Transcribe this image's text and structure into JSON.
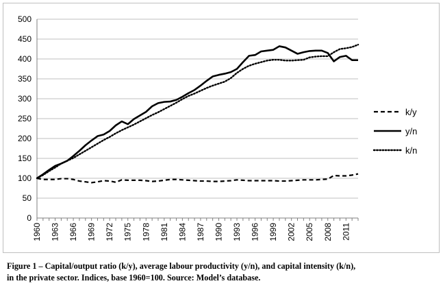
{
  "chart_data": {
    "type": "line",
    "x": [
      1960,
      1961,
      1962,
      1963,
      1964,
      1965,
      1966,
      1967,
      1968,
      1969,
      1970,
      1971,
      1972,
      1973,
      1974,
      1975,
      1976,
      1977,
      1978,
      1979,
      1980,
      1981,
      1982,
      1983,
      1984,
      1985,
      1986,
      1987,
      1988,
      1989,
      1990,
      1991,
      1992,
      1993,
      1994,
      1995,
      1996,
      1997,
      1998,
      1999,
      2000,
      2001,
      2002,
      2003,
      2004,
      2005,
      2006,
      2007,
      2008,
      2009,
      2010,
      2011,
      2012,
      2013
    ],
    "x_tick_labels": [
      "1960",
      "1963",
      "1966",
      "1969",
      "1972",
      "1975",
      "1978",
      "1981",
      "1984",
      "1987",
      "1990",
      "1993",
      "1996",
      "1999",
      "2002",
      "2005",
      "2008",
      "2011"
    ],
    "y_tick_labels": [
      "0",
      "50",
      "100",
      "150",
      "200",
      "250",
      "300",
      "350",
      "400",
      "450",
      "500"
    ],
    "ylim": [
      0,
      500
    ],
    "xlabel": "",
    "ylabel": "",
    "grid": "horizontal",
    "legend_position": "right",
    "series": [
      {
        "name": "k/y",
        "dash": "dashed",
        "values": [
          100,
          97,
          97,
          97,
          99,
          99,
          97,
          93,
          91,
          89,
          91,
          94,
          93,
          90,
          96,
          95,
          95,
          95,
          94,
          92,
          93,
          95,
          97,
          97,
          96,
          95,
          94,
          93,
          93,
          92,
          92,
          93,
          94,
          96,
          95,
          94,
          94,
          94,
          94,
          94,
          93,
          93,
          94,
          95,
          96,
          96,
          96,
          97,
          98,
          107,
          106,
          106,
          108,
          111
        ]
      },
      {
        "name": "y/n",
        "dash": "solid",
        "values": [
          100,
          110,
          121,
          131,
          137,
          144,
          156,
          169,
          183,
          195,
          206,
          210,
          219,
          233,
          243,
          236,
          249,
          258,
          267,
          281,
          289,
          292,
          293,
          297,
          305,
          314,
          322,
          333,
          345,
          356,
          360,
          363,
          367,
          375,
          392,
          408,
          410,
          419,
          421,
          423,
          432,
          429,
          421,
          413,
          417,
          420,
          421,
          421,
          415,
          394,
          405,
          408,
          397,
          397
        ]
      },
      {
        "name": "k/n",
        "dash": "dotted",
        "values": [
          100,
          108,
          118,
          127,
          137,
          144,
          151,
          160,
          169,
          178,
          187,
          196,
          204,
          213,
          221,
          228,
          235,
          243,
          251,
          259,
          266,
          274,
          282,
          290,
          299,
          307,
          313,
          320,
          327,
          333,
          338,
          343,
          352,
          365,
          375,
          383,
          388,
          392,
          396,
          398,
          398,
          396,
          396,
          397,
          398,
          404,
          406,
          407,
          407,
          417,
          425,
          427,
          430,
          436
        ]
      }
    ],
    "caption_lines": [
      "Figure 1 – Capital/output ratio (k/y), average labour productivity (y/n), and capital intensity (k/n),",
      "in the private sector. Indices, base 1960=100. Source: Model’s database."
    ]
  }
}
